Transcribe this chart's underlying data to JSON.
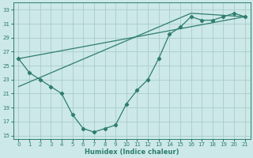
{
  "xlabel": "Humidex (Indice chaleur)",
  "background_color": "#cce8e8",
  "grid_color": "#aacccc",
  "line_color": "#2e7d6e",
  "xlim": [
    -0.5,
    21.5
  ],
  "ylim": [
    14.5,
    34.0
  ],
  "xticks": [
    0,
    1,
    2,
    3,
    4,
    5,
    6,
    7,
    8,
    9,
    10,
    11,
    12,
    13,
    14,
    15,
    16,
    17,
    18,
    19,
    20,
    21
  ],
  "yticks": [
    15,
    17,
    19,
    21,
    23,
    25,
    27,
    29,
    31,
    33
  ],
  "line1_x": [
    0,
    1,
    2,
    3,
    4,
    5,
    6,
    7,
    8,
    9,
    10,
    11,
    12,
    13,
    14,
    15,
    16,
    17,
    18,
    19,
    20,
    21
  ],
  "line1_y": [
    26.0,
    24.0,
    23.0,
    22.0,
    21.0,
    18.0,
    16.0,
    15.5,
    16.0,
    16.5,
    19.5,
    21.5,
    23.0,
    26.0,
    29.5,
    30.5,
    32.0,
    31.5,
    31.5,
    32.0,
    32.5,
    32.0
  ],
  "line2_x": [
    0,
    21
  ],
  "line2_y": [
    26.0,
    32.0
  ],
  "line3_x": [
    0,
    16,
    21
  ],
  "line3_y": [
    22.0,
    32.5,
    32.0
  ]
}
